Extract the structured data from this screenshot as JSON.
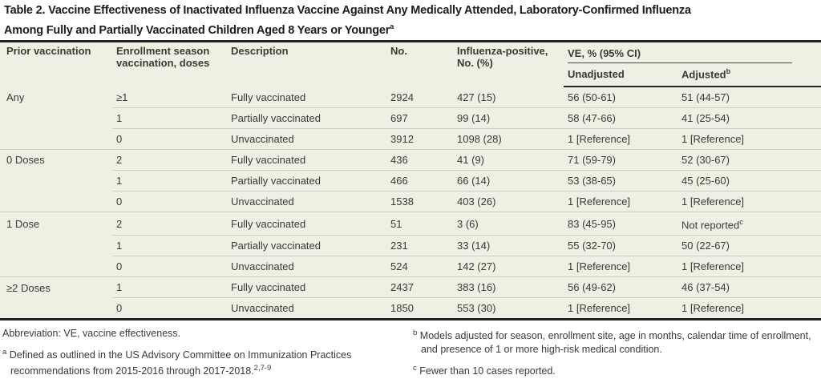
{
  "title": {
    "line1": "Table 2. Vaccine Effectiveness of Inactivated Influenza Vaccine Against Any Medically Attended, Laboratory-Confirmed Influenza",
    "line2": "Among Fully and Partially Vaccinated Children Aged 8 Years or Younger",
    "sup": "a"
  },
  "table": {
    "col_headers": {
      "prior_vaccination": "Prior vaccination",
      "enrollment_season": "Enrollment season vaccination, doses",
      "description": "Description",
      "no": "No.",
      "influenza_positive": "Influenza-positive, No. (%)",
      "ve_spanner": "VE, % (95% CI)",
      "unadjusted": "Unadjusted",
      "adjusted": "Adjusted",
      "adjusted_sup": "b"
    },
    "rows": [
      {
        "cells": [
          "Any",
          "≥1",
          "Fully vaccinated",
          "2924",
          "427 (15)",
          "56 (50-61)",
          "51 (44-57)"
        ]
      },
      {
        "cells": [
          "",
          "1",
          "Partially vaccinated",
          "697",
          "99 (14)",
          "58 (47-66)",
          "41 (25-54)"
        ]
      },
      {
        "cells": [
          "",
          "0",
          "Unvaccinated",
          "3912",
          "1098 (28)",
          "1 [Reference]",
          "1 [Reference]"
        ]
      },
      {
        "cells": [
          "0 Doses",
          "2",
          "Fully vaccinated",
          "436",
          "41 (9)",
          "71 (59-79)",
          "52 (30-67)"
        ]
      },
      {
        "cells": [
          "",
          "1",
          "Partially vaccinated",
          "466",
          "66 (14)",
          "53 (38-65)",
          "45 (25-60)"
        ]
      },
      {
        "cells": [
          "",
          "0",
          "Unvaccinated",
          "1538",
          "403 (26)",
          "1 [Reference]",
          "1 [Reference]"
        ]
      },
      {
        "cells": [
          "1 Dose",
          "2",
          "Fully vaccinated",
          "51",
          "3 (6)",
          "83 (45-95)",
          "Not reported"
        ],
        "adjusted_sup": "c"
      },
      {
        "cells": [
          "",
          "1",
          "Partially vaccinated",
          "231",
          "33 (14)",
          "55 (32-70)",
          "50 (22-67)"
        ]
      },
      {
        "cells": [
          "",
          "0",
          "Unvaccinated",
          "524",
          "142 (27)",
          "1 [Reference]",
          "1 [Reference]"
        ]
      },
      {
        "cells": [
          "≥2 Doses",
          "1",
          "Fully vaccinated",
          "2437",
          "383 (16)",
          "56 (49-62)",
          "46 (37-54)"
        ]
      },
      {
        "cells": [
          "",
          "0",
          "Unvaccinated",
          "1850",
          "553 (30)",
          "1 [Reference]",
          "1 [Reference]"
        ]
      }
    ]
  },
  "footnotes": {
    "abbreviation": "Abbreviation: VE, vaccine effectiveness.",
    "a": {
      "marker": "a",
      "text": "Defined as outlined in the US Advisory Committee on Immunization Practices recommendations from 2015-2016 through 2017-2018.",
      "ref_sup": "2,7-9"
    },
    "b": {
      "marker": "b",
      "text": "Models adjusted for season, enrollment site, age in months, calendar time of enrollment, and presence of 1 or more high-risk medical condition."
    },
    "c": {
      "marker": "c",
      "text": "Fewer than 10 cases reported."
    }
  },
  "colors": {
    "table_background": "#f0efe4",
    "heavy_rule": "#242422",
    "row_divider": "#cfcec3",
    "text": "#3a3a36",
    "title_text": "#1c1c1a"
  }
}
